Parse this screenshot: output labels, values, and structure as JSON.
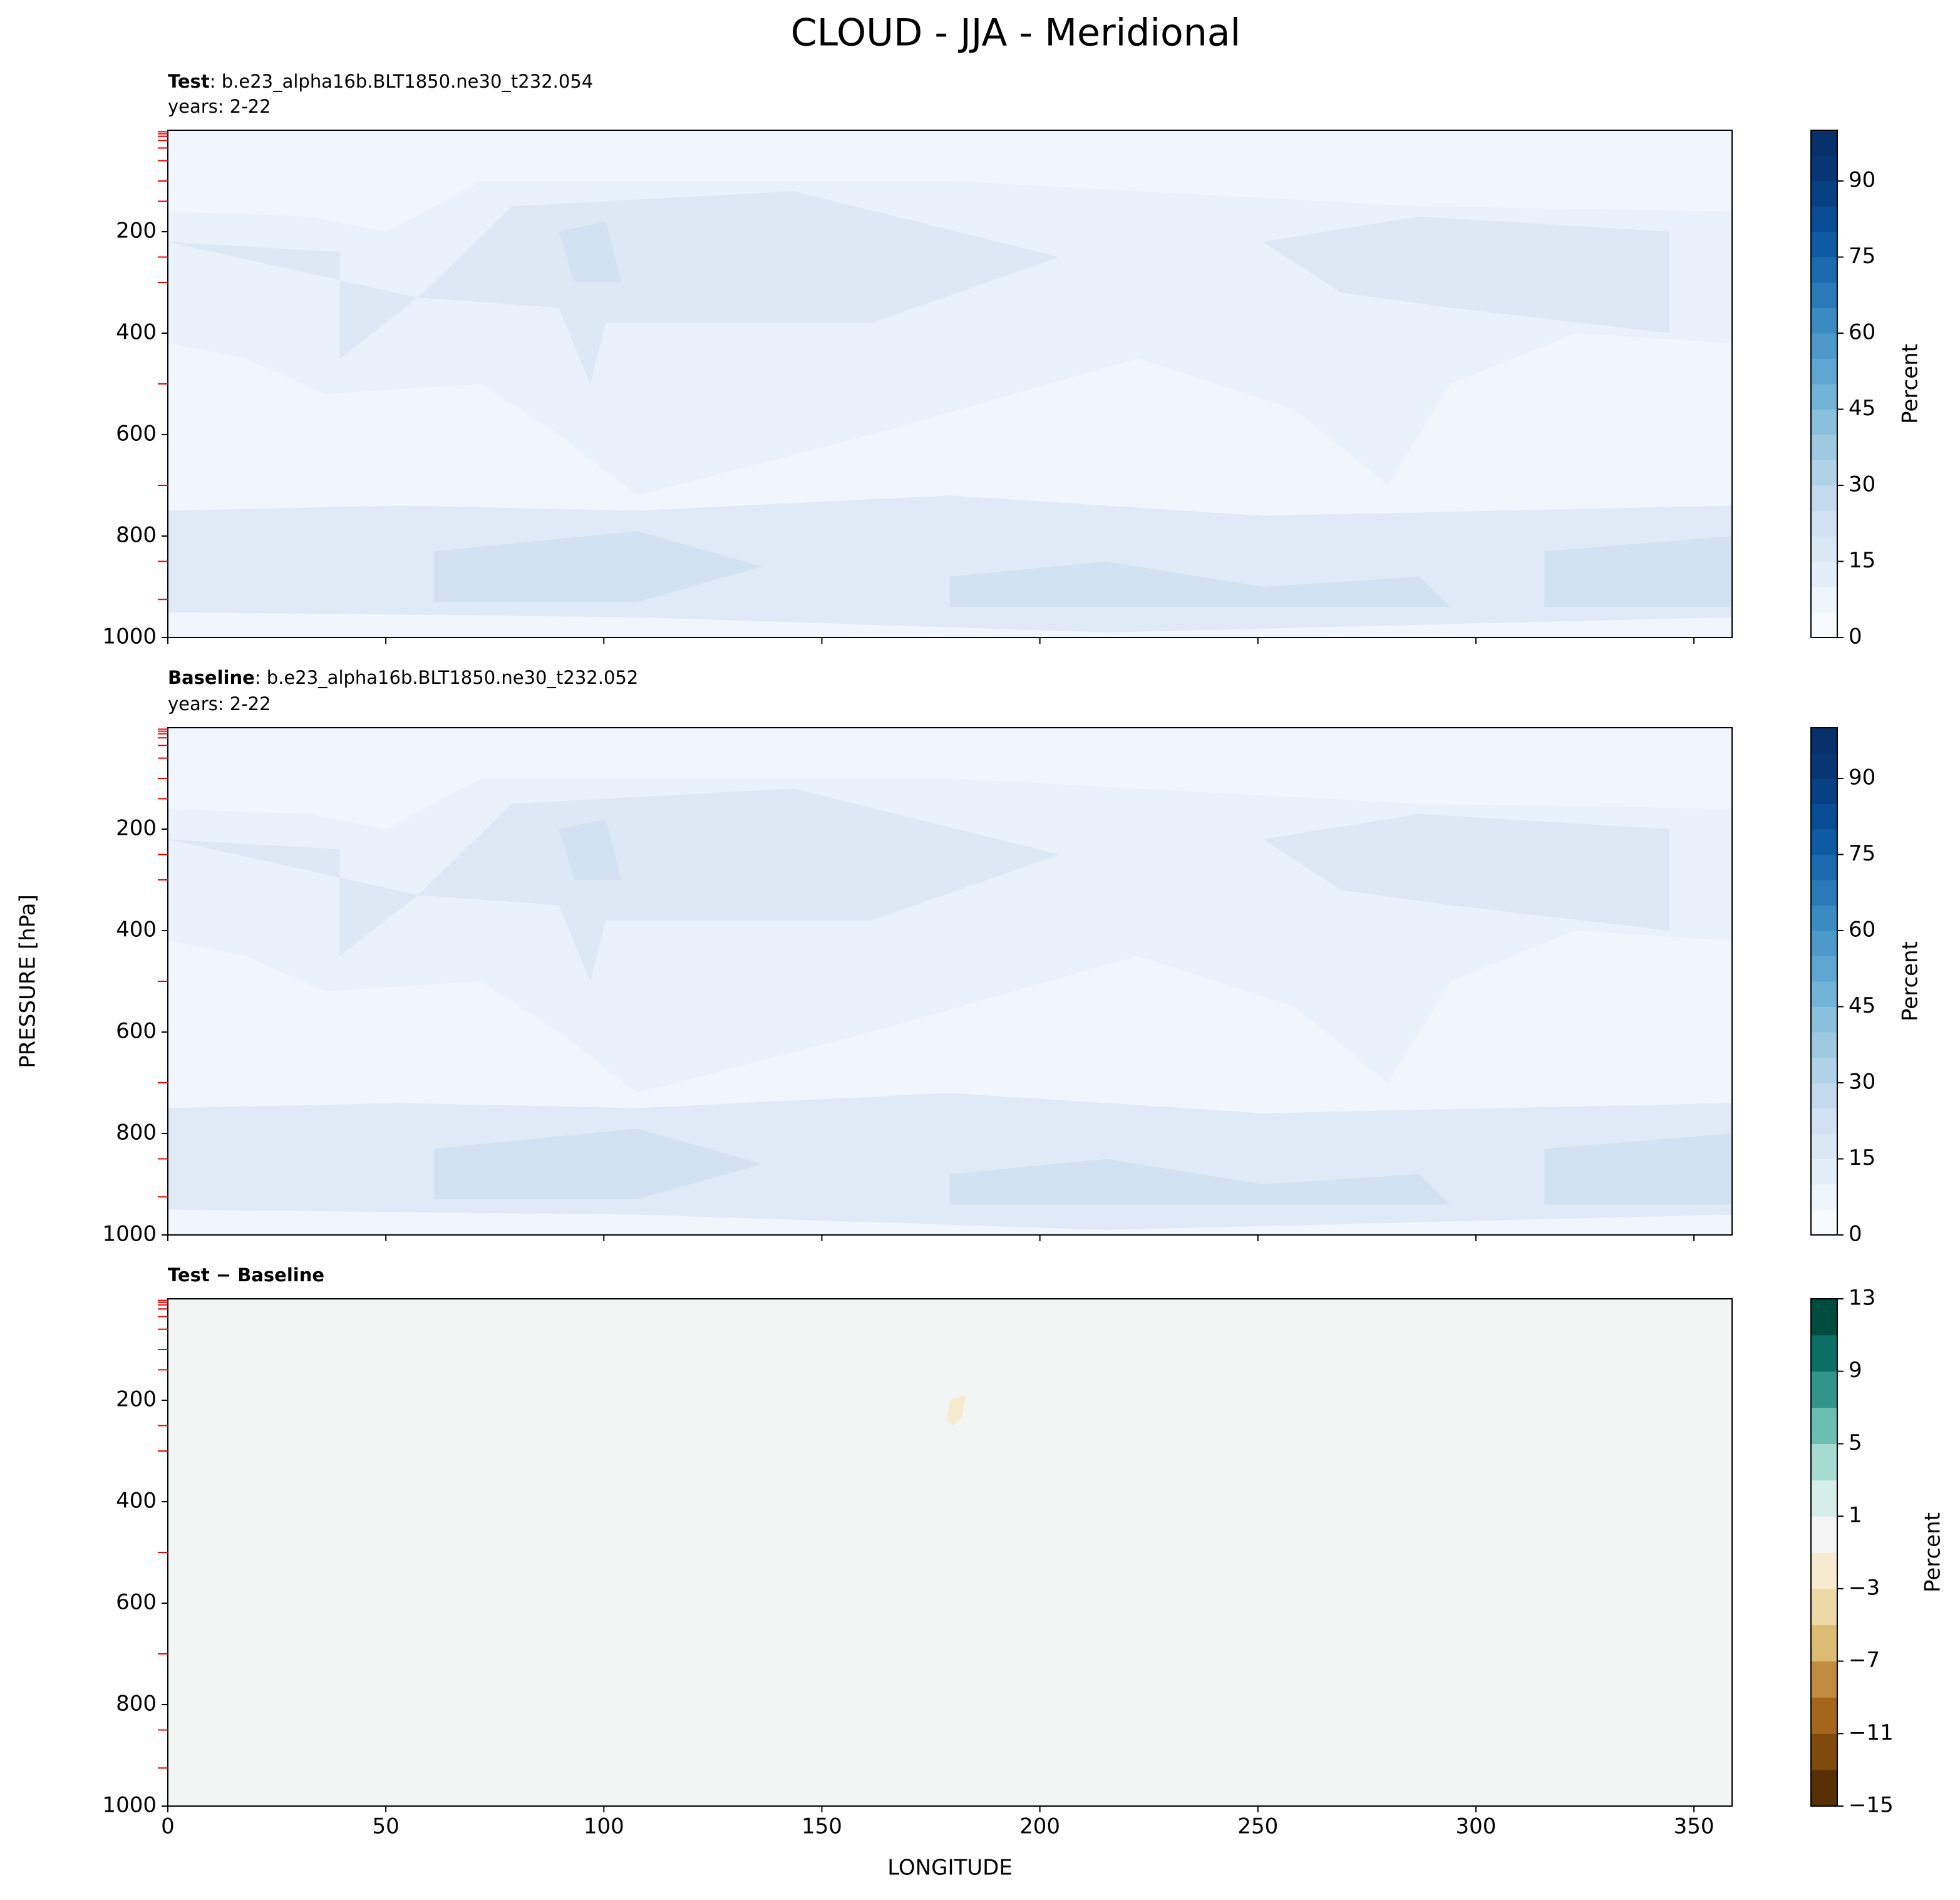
{
  "title": "CLOUD - JJA - Meridional",
  "chart_data": [
    {
      "type": "contour",
      "title_bold": "Test",
      "title": ": b.e23_alpha16b.BLT1850.ne30_t232.054",
      "subtitle": "years: 2-22",
      "xlim": [
        0,
        358.75
      ],
      "xticks": [
        0,
        50,
        100,
        150,
        200,
        250,
        300,
        350
      ],
      "ylim": [
        1000,
        0
      ],
      "yticks": [
        200,
        400,
        600,
        800,
        1000
      ],
      "model_levels": [
        3,
        7,
        12,
        20,
        35,
        60,
        100,
        140,
        250,
        300,
        500,
        700,
        850,
        925
      ],
      "colorbar": {
        "label": "Percent",
        "lim": [
          0,
          100
        ],
        "ticks": [
          0,
          15,
          30,
          45,
          60,
          75,
          90
        ],
        "colors": [
          "#f7fbff",
          "#eef5fc",
          "#e3eef9",
          "#d9e8f5",
          "#cfe1f2",
          "#c2d9ee",
          "#b0d2e8",
          "#9ecae1",
          "#8abfdd",
          "#74b3d8",
          "#60a6d2",
          "#4d99ca",
          "#3a8bc2",
          "#2a7ab9",
          "#1c6aaf",
          "#0f5ba3",
          "#084d96",
          "#084084",
          "#083674",
          "#08306b"
        ]
      }
    },
    {
      "type": "contour",
      "title_bold": "Baseline",
      "title": ": b.e23_alpha16b.BLT1850.ne30_t232.052",
      "subtitle": "years: 2-22",
      "ylabel": "PRESSURE [hPa]",
      "xlim": [
        0,
        358.75
      ],
      "xticks": [
        0,
        50,
        100,
        150,
        200,
        250,
        300,
        350
      ],
      "ylim": [
        1000,
        0
      ],
      "yticks": [
        200,
        400,
        600,
        800,
        1000
      ],
      "model_levels": [
        3,
        7,
        12,
        20,
        35,
        60,
        100,
        140,
        250,
        300,
        500,
        700,
        850,
        925
      ],
      "colorbar": {
        "label": "Percent",
        "lim": [
          0,
          100
        ],
        "ticks": [
          0,
          15,
          30,
          45,
          60,
          75,
          90
        ],
        "colors": [
          "#f7fbff",
          "#eef5fc",
          "#e3eef9",
          "#d9e8f5",
          "#cfe1f2",
          "#c2d9ee",
          "#b0d2e8",
          "#9ecae1",
          "#8abfdd",
          "#74b3d8",
          "#60a6d2",
          "#4d99ca",
          "#3a8bc2",
          "#2a7ab9",
          "#1c6aaf",
          "#0f5ba3",
          "#084d96",
          "#084084",
          "#083674",
          "#08306b"
        ]
      }
    },
    {
      "type": "contour",
      "title_bold": "Test − Baseline",
      "xlabel": "LONGITUDE",
      "xlim": [
        0,
        358.75
      ],
      "xticks": [
        0,
        50,
        100,
        150,
        200,
        250,
        300,
        350
      ],
      "ylim": [
        1000,
        0
      ],
      "yticks": [
        200,
        400,
        600,
        800,
        1000
      ],
      "model_levels": [
        3,
        7,
        12,
        20,
        35,
        60,
        100,
        140,
        250,
        300,
        500,
        700,
        850,
        925
      ],
      "colorbar": {
        "label": "Percent",
        "lim": [
          -15,
          13
        ],
        "ticks": [
          {
            "value": -15,
            "label": "−15"
          },
          {
            "value": -11,
            "label": "−11"
          },
          {
            "value": -7,
            "label": "−7"
          },
          {
            "value": -3,
            "label": "−3"
          },
          1,
          5,
          9,
          13
        ],
        "colors": [
          "#573004",
          "#7f4a0b",
          "#a5661c",
          "#c18c3f",
          "#dcbc73",
          "#ecd9a6",
          "#f6ebcf",
          "#f5f5f5",
          "#d6eee9",
          "#a5dbd1",
          "#6bbfb0",
          "#32958b",
          "#0b6f66",
          "#004c3f"
        ]
      }
    }
  ]
}
